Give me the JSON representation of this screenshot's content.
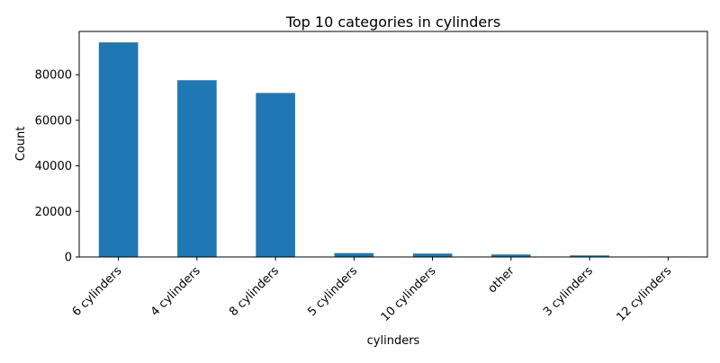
{
  "chart_data": {
    "type": "bar",
    "title": "Top 10 categories in cylinders",
    "xlabel": "cylinders",
    "ylabel": "Count",
    "categories": [
      "6 cylinders",
      "4 cylinders",
      "8 cylinders",
      "5 cylinders",
      "10 cylinders",
      "other",
      "3 cylinders",
      "12 cylinders"
    ],
    "values": [
      94200,
      77600,
      72000,
      1700,
      1500,
      1100,
      700,
      200
    ],
    "ylim": [
      0,
      99000
    ],
    "yticks": [
      0,
      20000,
      40000,
      60000,
      80000
    ],
    "bar_color": "#1f77b4",
    "grid": false,
    "legend": "none"
  }
}
